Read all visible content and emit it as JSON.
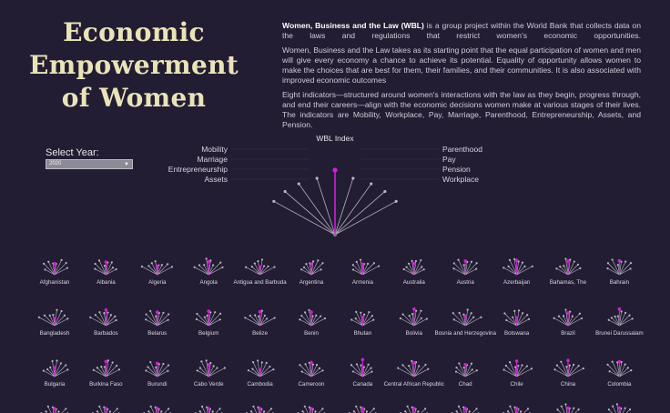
{
  "title_lines": [
    "Economic",
    "Empowerment",
    "of Women"
  ],
  "description": {
    "p1_strong": "Women, Business and the Law (WBL)",
    "p1_rest": " is a group project within the World Bank that collects data on the laws and regulations that restrict women's economic opportunities.",
    "p2": "Women, Business and the Law takes as its starting point that the equal participation of women and men will give every economy a chance to achieve its potential. Equality of opportunity allows women to make the choices that are best for them, their families, and their communities. It is also associated with improved economic outcomes",
    "p3": "Eight indicators—structured around women's interactions with the law as they begin, progress through, and end their careers—align with the economic decisions women make at various stages of their lives. The indicators are Mobility, Workplace, Pay, Marriage, Parenthood, Entrepreneurship, Assets, and Pension."
  },
  "year_select": {
    "label": "Select Year:",
    "value": "2020"
  },
  "legend": {
    "title": "WBL Index",
    "left_indicators": [
      "Mobility",
      "Marriage",
      "Entrepreneurship",
      "Assets"
    ],
    "right_indicators": [
      "Parenthood",
      "Pay",
      "Pension",
      "Workplace"
    ]
  },
  "colors": {
    "background": "#221d33",
    "spoke": "#b9b6c3",
    "index": "#d21fd6",
    "title": "#e9e3b8"
  },
  "chart_data": {
    "type": "radial-small-multiples",
    "indicators": [
      "Mobility",
      "Marriage",
      "Entrepreneurship",
      "Assets",
      "Parenthood",
      "Pay",
      "Pension",
      "Workplace"
    ],
    "year": "2020",
    "countries": [
      "Afghanistan",
      "Albania",
      "Algeria",
      "Angola",
      "Antigua and Barbuda",
      "Argentina",
      "Armenia",
      "Australia",
      "Austria",
      "Azerbaijan",
      "Bahamas, The",
      "Bahrain",
      "Bangladesh",
      "Barbados",
      "Belarus",
      "Belgium",
      "Belize",
      "Benin",
      "Bhutan",
      "Bolivia",
      "Bosnia and Herzegovina",
      "Botswana",
      "Brazil",
      "Brunei Darussalam",
      "Bulgaria",
      "Burkina Faso",
      "Burundi",
      "Cabo Verde",
      "Cambodia",
      "Cameroon",
      "Canada",
      "Central African Republic",
      "Chad",
      "Chile",
      "China",
      "Colombia"
    ]
  }
}
